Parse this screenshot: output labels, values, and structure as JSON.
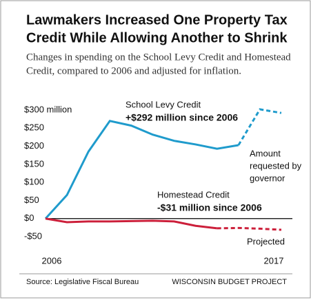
{
  "chart_data": {
    "type": "line",
    "title": [
      "Lawmakers Increased One Property Tax",
      "Credit While Allowing Another to Shrink"
    ],
    "subtitle": [
      "Changes in spending on the School Levy Credit and Homestead",
      "Credit, compared to 2006 and adjusted for inflation."
    ],
    "x": [
      "2006",
      null,
      null,
      null,
      null,
      null,
      null,
      null,
      null,
      null,
      null,
      "2017"
    ],
    "ylim": [
      -50,
      300
    ],
    "yticks": [
      {
        "value": 300,
        "label": "$300 million"
      },
      {
        "value": 250,
        "label": "$250"
      },
      {
        "value": 200,
        "label": "$200"
      },
      {
        "value": 150,
        "label": "$150"
      },
      {
        "value": 100,
        "label": "$100"
      },
      {
        "value": 50,
        "label": "$50"
      },
      {
        "value": 0,
        "label": "$0"
      },
      {
        "value": -50,
        "label": "-$50"
      }
    ],
    "grid": false,
    "zero_line": true,
    "series": [
      {
        "name": "School Levy Credit",
        "color": "#1f9bcc",
        "dash_from": 9,
        "values": [
          0,
          65,
          185,
          270,
          257,
          232,
          215,
          205,
          193,
          203,
          302,
          292
        ]
      },
      {
        "name": "Homestead Credit",
        "color": "#cc1f3a",
        "dash_from": 8,
        "values": [
          0,
          -10,
          -8,
          -8,
          -7,
          -6,
          -8,
          -20,
          -27,
          -26,
          -28,
          -31
        ]
      }
    ],
    "annotations": {
      "school_change": "+$292 million since 2006",
      "homestead_change": "-$31 million since 2006",
      "governor": [
        "Amount",
        "requested by",
        "governor"
      ],
      "projected": "Projected"
    },
    "source": "Source: Legislative Fiscal Bureau",
    "credit": "WISCONSIN BUDGET PROJECT"
  }
}
